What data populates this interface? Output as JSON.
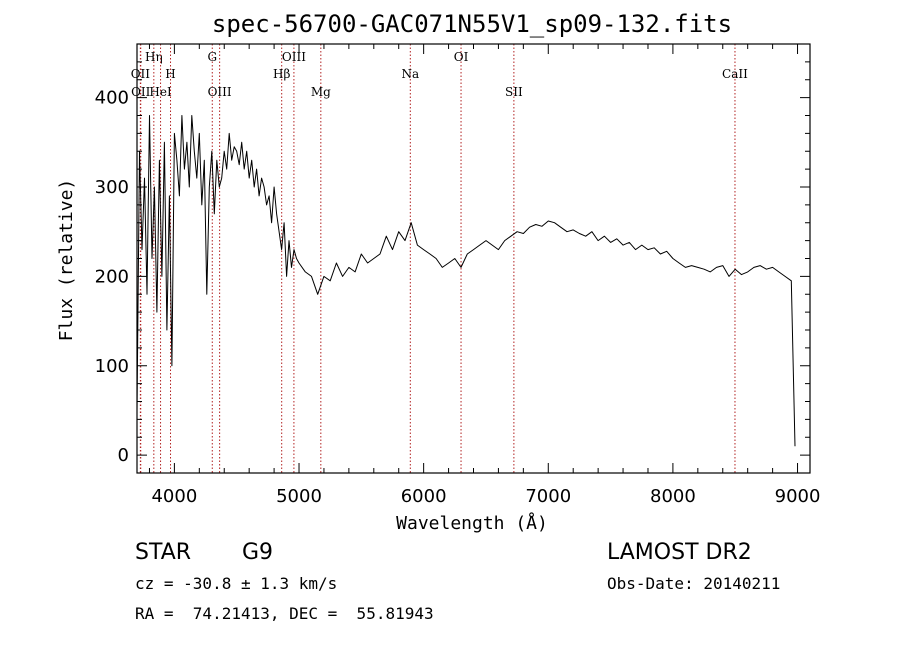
{
  "chart_data": {
    "type": "line",
    "title": "spec-56700-GAC071N55V1_sp09-132.fits",
    "xlabel": "Wavelength (Å)",
    "ylabel": "Flux (relative)",
    "xlim": [
      3700,
      9100
    ],
    "ylim": [
      -20,
      460
    ],
    "x_ticks": [
      4000,
      5000,
      6000,
      7000,
      8000,
      9000
    ],
    "x_tick_labels": [
      "4000",
      "5000",
      "6000",
      "7000",
      "8000",
      "9000"
    ],
    "y_ticks": [
      0,
      100,
      200,
      300,
      400
    ],
    "y_tick_labels": [
      "0",
      "100",
      "200",
      "300",
      "400"
    ],
    "grid": false,
    "line_color": "#000000",
    "marker_color": "#b22222",
    "spectral_lines": [
      {
        "name": "OII",
        "wavelength": 3727,
        "row": 2
      },
      {
        "name": "OII",
        "wavelength": 3730,
        "row": 4
      },
      {
        "name": "Hη",
        "wavelength": 3835,
        "row": 1
      },
      {
        "name": "HeI",
        "wavelength": 3889,
        "row": 4
      },
      {
        "name": "H",
        "wavelength": 3969,
        "row": 2
      },
      {
        "name": "G",
        "wavelength": 4304,
        "row": 1
      },
      {
        "name": "OIII",
        "wavelength": 4363,
        "row": 4
      },
      {
        "name": "Hβ",
        "wavelength": 4861,
        "row": 2
      },
      {
        "name": "OIII",
        "wavelength": 4959,
        "row": 1
      },
      {
        "name": "Mg",
        "wavelength": 5175,
        "row": 4
      },
      {
        "name": "Na",
        "wavelength": 5893,
        "row": 2
      },
      {
        "name": "OI",
        "wavelength": 6300,
        "row": 1
      },
      {
        "name": "SII",
        "wavelength": 6724,
        "row": 4
      },
      {
        "name": "CaII",
        "wavelength": 8498,
        "row": 2
      }
    ],
    "series": [
      {
        "x": [
          3700,
          3720,
          3740,
          3760,
          3780,
          3800,
          3820,
          3840,
          3860,
          3880,
          3900,
          3920,
          3940,
          3960,
          3980,
          4000,
          4020,
          4040,
          4060,
          4080,
          4100,
          4120,
          4140,
          4160,
          4180,
          4200,
          4220,
          4240,
          4260,
          4280,
          4300,
          4320,
          4340,
          4360,
          4380,
          4400,
          4420,
          4440,
          4460,
          4480,
          4500,
          4520,
          4540,
          4560,
          4580,
          4600,
          4620,
          4640,
          4660,
          4680,
          4700,
          4720,
          4740,
          4760,
          4780,
          4800,
          4820,
          4840,
          4860,
          4880,
          4900,
          4920,
          4940,
          4960,
          4980,
          5000,
          5050,
          5100,
          5150,
          5200,
          5250,
          5300,
          5350,
          5400,
          5450,
          5500,
          5550,
          5600,
          5650,
          5700,
          5750,
          5800,
          5850,
          5900,
          5950,
          6000,
          6050,
          6100,
          6150,
          6200,
          6250,
          6300,
          6350,
          6400,
          6450,
          6500,
          6550,
          6600,
          6650,
          6700,
          6750,
          6800,
          6850,
          6900,
          6950,
          7000,
          7050,
          7100,
          7150,
          7200,
          7250,
          7300,
          7350,
          7400,
          7450,
          7500,
          7550,
          7600,
          7650,
          7700,
          7750,
          7800,
          7850,
          7900,
          7950,
          8000,
          8050,
          8100,
          8150,
          8200,
          8250,
          8300,
          8350,
          8400,
          8450,
          8500,
          8550,
          8600,
          8650,
          8700,
          8750,
          8800,
          8850,
          8900,
          8950,
          8980
        ],
        "y": [
          50,
          340,
          230,
          310,
          180,
          380,
          220,
          300,
          160,
          330,
          200,
          350,
          140,
          290,
          100,
          360,
          330,
          290,
          380,
          320,
          350,
          300,
          380,
          340,
          310,
          360,
          280,
          330,
          180,
          300,
          340,
          270,
          330,
          300,
          310,
          340,
          320,
          360,
          330,
          345,
          340,
          325,
          350,
          320,
          340,
          310,
          330,
          300,
          320,
          290,
          310,
          300,
          280,
          290,
          260,
          300,
          270,
          250,
          230,
          260,
          200,
          240,
          210,
          230,
          220,
          215,
          205,
          200,
          180,
          200,
          195,
          215,
          200,
          210,
          205,
          225,
          215,
          220,
          225,
          245,
          230,
          250,
          240,
          260,
          235,
          230,
          225,
          220,
          210,
          215,
          220,
          210,
          225,
          230,
          235,
          240,
          235,
          230,
          240,
          245,
          250,
          248,
          255,
          258,
          256,
          262,
          260,
          255,
          250,
          252,
          248,
          245,
          250,
          240,
          245,
          238,
          242,
          235,
          238,
          230,
          235,
          230,
          232,
          225,
          228,
          220,
          215,
          210,
          212,
          210,
          208,
          205,
          210,
          212,
          200,
          208,
          202,
          205,
          210,
          212,
          208,
          210,
          205,
          200,
          195,
          10
        ]
      }
    ]
  },
  "info": {
    "obj_class": "STAR",
    "subclass": "G9",
    "survey": "LAMOST DR2",
    "cz": "cz = -30.8 ± 1.3 km/s",
    "obs_date": "Obs-Date: 20140211",
    "radec": "RA =  74.21413, DEC =  55.81943"
  }
}
